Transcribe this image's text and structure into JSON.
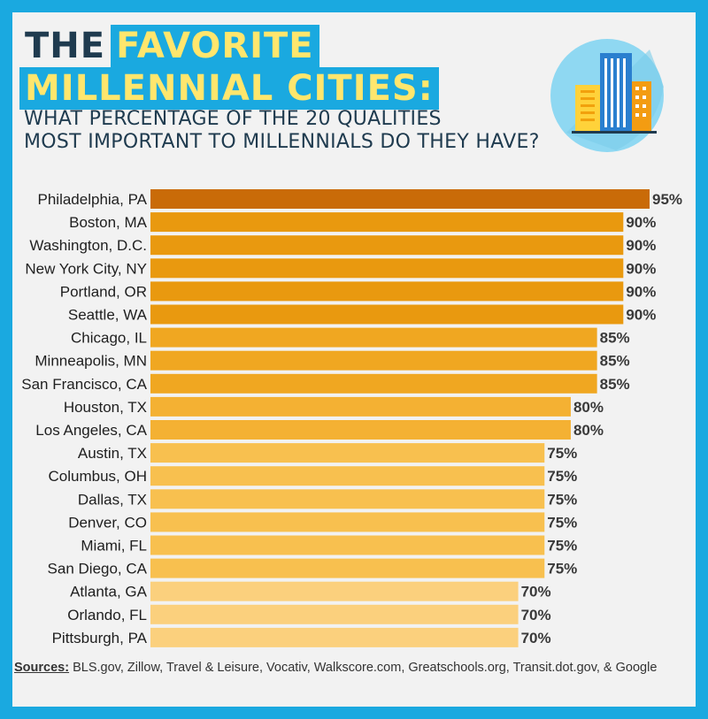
{
  "title": {
    "part1": "THE",
    "part2": "FAVORITE",
    "line2": "MILLENNIAL CITIES:"
  },
  "subtitle": {
    "line1": "WHAT PERCENTAGE OF THE 20 QUALITIES",
    "line2": "MOST IMPORTANT TO MILLENNIALS DO THEY HAVE?"
  },
  "logo_icon": "city-buildings-icon",
  "colors": {
    "background": "#1aa9e0",
    "card": "#f2f2f2",
    "title_dark": "#1f3b4f",
    "title_highlight": "#ffe66d",
    "bar_95": "#c96b08",
    "bar_90": "#e9990f",
    "bar_85": "#f0a721",
    "bar_80": "#f4b133",
    "bar_75": "#f8c04f",
    "bar_70": "#fbd07d"
  },
  "chart_data": {
    "type": "bar",
    "orientation": "horizontal",
    "categories": [
      "Philadelphia, PA",
      "Boston, MA",
      "Washington, D.C.",
      "New York City, NY",
      "Portland, OR",
      "Seattle, WA",
      "Chicago, IL",
      "Minneapolis, MN",
      "San Francisco, CA",
      "Houston, TX",
      "Los Angeles, CA",
      "Austin, TX",
      "Columbus, OH",
      "Dallas, TX",
      "Denver, CO",
      "Miami, FL",
      "San Diego, CA",
      "Atlanta, GA",
      "Orlando, FL",
      "Pittsburgh, PA"
    ],
    "values": [
      95,
      90,
      90,
      90,
      90,
      90,
      85,
      85,
      85,
      80,
      80,
      75,
      75,
      75,
      75,
      75,
      75,
      70,
      70,
      70
    ],
    "value_labels": [
      "95%",
      "90%",
      "90%",
      "90%",
      "90%",
      "90%",
      "85%",
      "85%",
      "85%",
      "80%",
      "80%",
      "75%",
      "75%",
      "75%",
      "75%",
      "75%",
      "75%",
      "70%",
      "70%",
      "70%"
    ],
    "xlim": [
      0,
      95
    ],
    "grid": false,
    "title": "",
    "xlabel": "",
    "ylabel": ""
  },
  "sources": {
    "label": "Sources:",
    "text": " BLS.gov, Zillow, Travel & Leisure, Vocativ, Walkscore.com, Greatschools.org, Transit.dot.gov, & Google"
  }
}
